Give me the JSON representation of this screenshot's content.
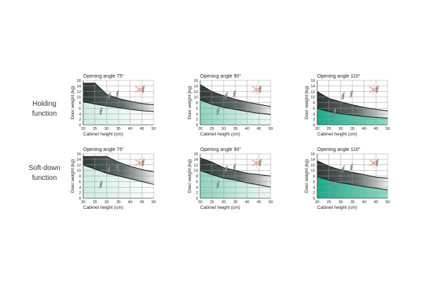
{
  "rows": [
    {
      "label_line1": "Holding",
      "label_line2": "function"
    },
    {
      "label_line1": "Soft-down",
      "label_line2": "function"
    }
  ],
  "axes": {
    "xlabel": "Cabinet height (cm)",
    "ylabel": "Door weight (kg)",
    "xticks": [
      "20",
      "25",
      "30",
      "35",
      "40",
      "45",
      "50"
    ],
    "yticks": [
      "0",
      "2",
      "4",
      "6",
      "8",
      "10",
      "12",
      "14",
      "16"
    ],
    "xlim": [
      20,
      50
    ],
    "ylim": [
      0,
      16
    ]
  },
  "colors": {
    "dark": "#2f3a38",
    "teal_full": "#1aa98c",
    "teal_light": "#cfece3",
    "pale": "#eef7f3",
    "cross": "#e8826e"
  },
  "chart_data": [
    {
      "type": "area",
      "title": "Opening angle 75°",
      "row": "Holding function",
      "fill": "light",
      "x": [
        20,
        25,
        30,
        35,
        40,
        45,
        50
      ],
      "series": [
        {
          "name": "",
          "values": [
            15,
            15,
            11,
            9.5,
            8.5,
            7.7,
            7.2
          ]
        },
        {
          "name": "",
          "values": [
            8.3,
            7.5,
            6.8,
            6.2,
            5.6,
            5.1,
            4.8
          ]
        }
      ]
    },
    {
      "type": "area",
      "title": "Opening angle 90°",
      "row": "Holding function",
      "fill": "medium",
      "x": [
        20,
        25,
        30,
        35,
        40,
        45,
        50
      ],
      "series": [
        {
          "name": "",
          "values": [
            14.5,
            12,
            10.5,
            9.2,
            8.2,
            7.4,
            6.6
          ]
        },
        {
          "name": "",
          "values": [
            9,
            7.4,
            6.3,
            5.5,
            4.8,
            4.2,
            3.7
          ]
        }
      ]
    },
    {
      "type": "area",
      "title": "Opening angle 110°",
      "row": "Holding function",
      "fill": "full",
      "x": [
        20,
        25,
        30,
        35,
        40,
        45,
        50
      ],
      "series": [
        {
          "name": "",
          "values": [
            12,
            9.5,
            8.3,
            7.2,
            6.3,
            5.6,
            5
          ]
        },
        {
          "name": "",
          "values": [
            6,
            4.8,
            4,
            3.5,
            3,
            2.7,
            2.4
          ]
        }
      ]
    },
    {
      "type": "area",
      "title": "Opening angle 75°",
      "row": "Soft-down function",
      "fill": "light",
      "x": [
        20,
        25,
        30,
        35,
        40,
        45,
        50
      ],
      "series": [
        {
          "name": "",
          "values": [
            15,
            15,
            15,
            13,
            11.5,
            10.3,
            9.5
          ]
        },
        {
          "name": "",
          "values": [
            12,
            10.5,
            9,
            8,
            7,
            6,
            5
          ]
        }
      ]
    },
    {
      "type": "area",
      "title": "Opening angle 90°",
      "row": "Soft-down function",
      "fill": "medium",
      "x": [
        20,
        25,
        30,
        35,
        40,
        45,
        50
      ],
      "series": [
        {
          "name": "",
          "values": [
            14.5,
            13,
            11,
            10,
            9,
            8.5,
            8
          ]
        },
        {
          "name": "",
          "values": [
            10,
            8.5,
            7.2,
            6.5,
            5.5,
            4.8,
            4
          ]
        }
      ]
    },
    {
      "type": "area",
      "title": "Opening angle 110°",
      "row": "Soft-down function",
      "fill": "full",
      "x": [
        20,
        25,
        30,
        35,
        40,
        45,
        50
      ],
      "series": [
        {
          "name": "",
          "values": [
            13.5,
            11.5,
            10.2,
            9.3,
            8.5,
            7.6,
            7.2
          ]
        },
        {
          "name": "",
          "values": [
            7.8,
            6.5,
            5.6,
            4.9,
            4.2,
            3.6,
            3
          ]
        }
      ]
    }
  ]
}
